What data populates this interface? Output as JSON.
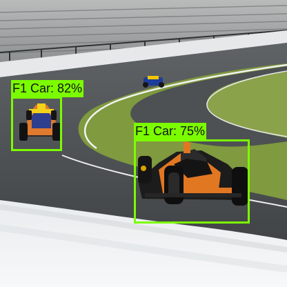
{
  "detections": [
    {
      "label": "F1 Car: 82%"
    },
    {
      "label": "F1 Car: 75%"
    }
  ],
  "colors": {
    "box": "#7cfc00"
  }
}
